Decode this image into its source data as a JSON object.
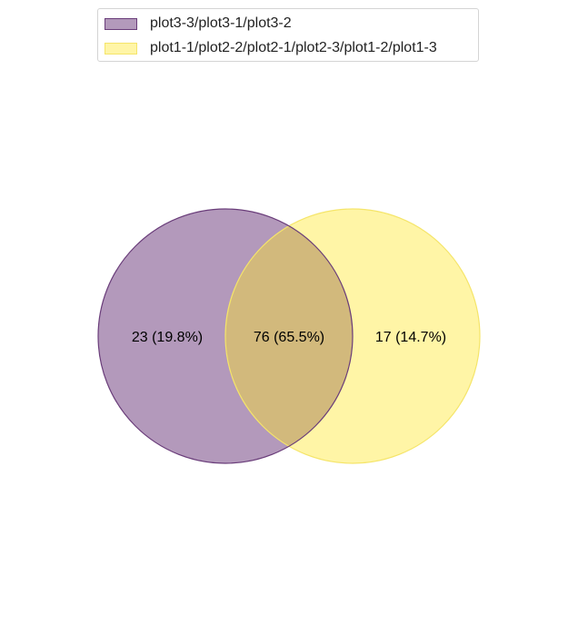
{
  "legend": {
    "set_a": "plot3-3/plot3-1/plot3-2",
    "set_b": "plot1-1/plot2-2/plot2-1/plot2-3/plot1-2/plot1-3"
  },
  "regions": {
    "only_a": "23 (19.8%)",
    "both": "76 (65.5%)",
    "only_b": "17 (14.7%)"
  },
  "colors": {
    "set_a_fill": "#b399bb",
    "set_a_edge": "#6a3d7a",
    "set_b_fill": "#fff5a6",
    "set_b_edge": "#f5e56a",
    "overlap_fill": "#d2b97c"
  }
}
